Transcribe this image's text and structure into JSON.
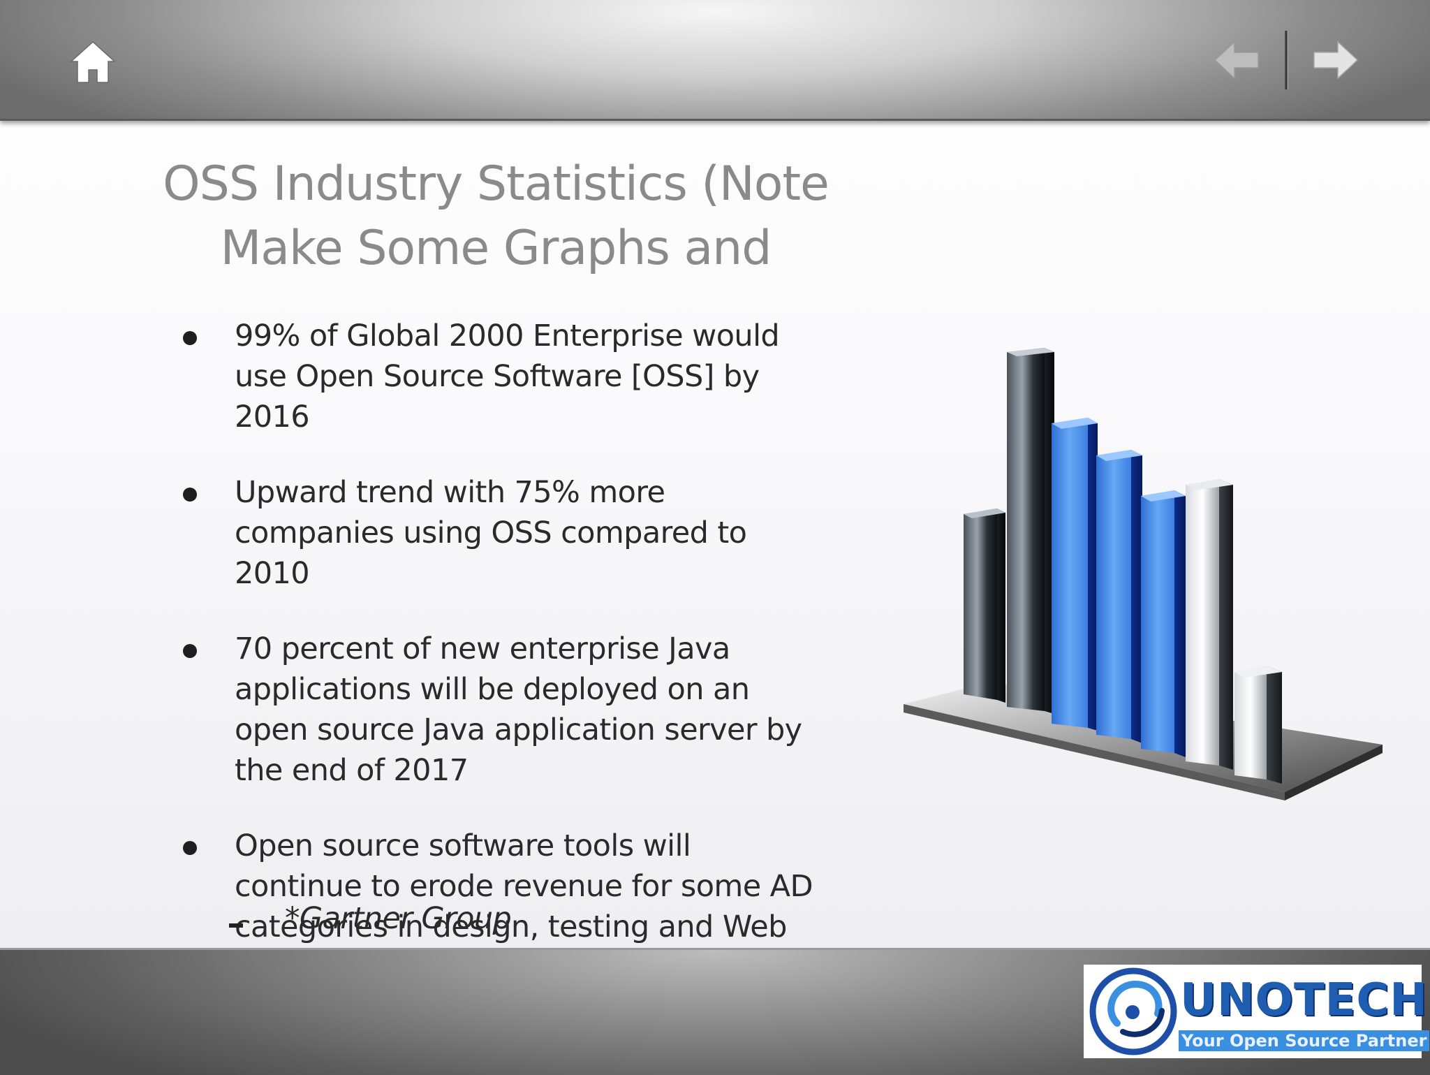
{
  "toolbar": {
    "home_icon": "home-icon",
    "prev_icon": "arrow-left-icon",
    "next_icon": "arrow-right-icon"
  },
  "slide": {
    "title_line1": "OSS Industry Statistics (Note",
    "title_line2": "Make Some Graphs and",
    "bullets": [
      "99% of Global 2000 Enterprise would use Open Source Software [OSS] by 2016",
      "Upward trend with 75% more companies using OSS compared to 2010",
      "70 percent of new enterprise Java applications will be deployed on an open source Java application server by the end of 2017",
      "Open source software tools will continue to erode revenue for some AD categories in design, testing and Web development"
    ],
    "source": "*Gartner Group",
    "illustration_icon": "bar-chart-3d-icon"
  },
  "logo": {
    "brand": "UNOTECH",
    "tagline": "Your Open Source Partner"
  },
  "colors": {
    "title": "#8a8a8a",
    "body_text": "#2a2a2a",
    "brand_blue": "#1f5db0"
  }
}
